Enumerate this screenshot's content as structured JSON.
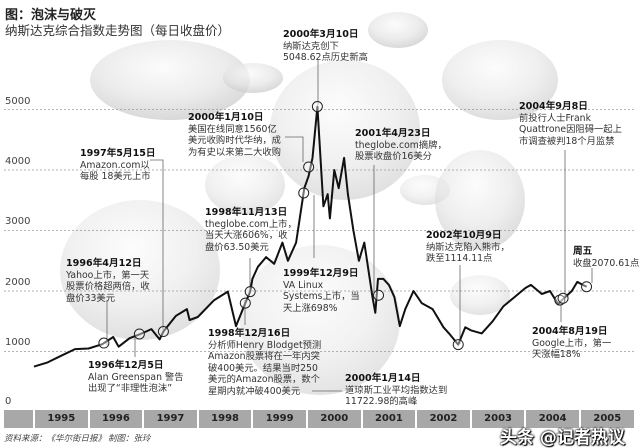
{
  "header": {
    "title": "图：泡沫与破灭",
    "subtitle": "纳斯达克综合指数走势图（每日收盘价）"
  },
  "footer": {
    "source": "资料来源：《华尔街日报》",
    "credit": "制图：张玲",
    "watermark": "头条 @记者热议"
  },
  "colors": {
    "line": "#111111",
    "grid": "#999999",
    "yearbar": "#a8a8a8"
  },
  "chart_data": {
    "type": "line",
    "title": "纳斯达克综合指数走势图（每日收盘价）",
    "ylim": [
      0,
      5000
    ],
    "yticks": [
      "5000",
      "4000",
      "3000",
      "2000",
      "1000",
      "0"
    ],
    "xticks": [
      "1995",
      "1996",
      "1997",
      "1998",
      "1999",
      "2000",
      "2001",
      "2002",
      "2003",
      "2004",
      "2005"
    ],
    "grid": true,
    "x": [
      1995.0,
      1995.25,
      1995.5,
      1995.75,
      1996.0,
      1996.25,
      1996.45,
      1996.55,
      1996.75,
      1996.95,
      1997.15,
      1997.3,
      1997.37,
      1997.6,
      1997.8,
      1997.85,
      1998.0,
      1998.3,
      1998.55,
      1998.7,
      1998.87,
      1998.96,
      1999.0,
      1999.1,
      1999.25,
      1999.4,
      1999.55,
      1999.65,
      1999.8,
      1999.95,
      2000.03,
      2000.1,
      2000.19,
      2000.3,
      2000.38,
      2000.42,
      2000.5,
      2000.58,
      2000.68,
      2000.75,
      2000.85,
      2000.95,
      2001.05,
      2001.2,
      2001.25,
      2001.3,
      2001.4,
      2001.5,
      2001.6,
      2001.7,
      2001.8,
      2001.95,
      2002.1,
      2002.3,
      2002.5,
      2002.6,
      2002.77,
      2002.9,
      2003.0,
      2003.2,
      2003.4,
      2003.6,
      2003.8,
      2004.0,
      2004.1,
      2004.3,
      2004.45,
      2004.6,
      2004.67,
      2004.85,
      2004.95,
      2005.05,
      2005.12
    ],
    "y": [
      750,
      820,
      930,
      1040,
      1050,
      1120,
      1240,
      1080,
      1220,
      1290,
      1370,
      1200,
      1330,
      1590,
      1700,
      1520,
      1570,
      1850,
      1990,
      1420,
      1800,
      1990,
      2200,
      2400,
      2560,
      2450,
      2800,
      2500,
      2800,
      3700,
      3900,
      4200,
      5048,
      3400,
      3600,
      3200,
      4000,
      3700,
      4200,
      3600,
      3000,
      2500,
      2800,
      1900,
      1640,
      2200,
      2200,
      2100,
      1900,
      1420,
      1700,
      2000,
      1800,
      1700,
      1400,
      1300,
      1114,
      1400,
      1350,
      1300,
      1500,
      1750,
      1900,
      2050,
      2100,
      1950,
      2000,
      1780,
      1850,
      2000,
      2150,
      2100,
      2070.61
    ],
    "markers": [
      {
        "date": 1996.28,
        "value": 1140
      },
      {
        "date": 1996.93,
        "value": 1290
      },
      {
        "date": 1997.37,
        "value": 1330
      },
      {
        "date": 1998.87,
        "value": 1800
      },
      {
        "date": 1998.96,
        "value": 1990
      },
      {
        "date": 1999.94,
        "value": 3620
      },
      {
        "date": 2000.03,
        "value": 4050
      },
      {
        "date": 2000.19,
        "value": 5048.62
      },
      {
        "date": 2001.31,
        "value": 1930
      },
      {
        "date": 2002.77,
        "value": 1114.11
      },
      {
        "date": 2004.63,
        "value": 1850
      },
      {
        "date": 2004.69,
        "value": 1880
      },
      {
        "date": 2005.12,
        "value": 2070.61
      }
    ]
  },
  "annotations": [
    {
      "id": "a1",
      "title": "1996年4月12日",
      "lines": [
        "Yahoo上市，第一天",
        "股票价格超两倍，收",
        "盘价33美元"
      ]
    },
    {
      "id": "a2",
      "title": "1996年12月5日",
      "lines": [
        "Alan Greenspan 警告",
        "出现了“非理性泡沫”"
      ]
    },
    {
      "id": "a3",
      "title": "1997年5月15日",
      "lines": [
        "Amazon.com以",
        "每股 18美元上市"
      ]
    },
    {
      "id": "a4",
      "title": "1998年11月13日",
      "lines": [
        "theglobe.com上市，",
        "当天大涨606%，收",
        "盘价63.50美元"
      ]
    },
    {
      "id": "a5",
      "title": "1998年12月16日",
      "lines": [
        "分析师Henry Blodget预测",
        "Amazon股票将在一年内突",
        "破400美元。结果当时250",
        "美元的Amazon股票，数个",
        "星期内就冲破400美元"
      ]
    },
    {
      "id": "a6",
      "title": "1999年12月9日",
      "lines": [
        "VA Linux",
        "Systems上市，当",
        "天上涨698%"
      ]
    },
    {
      "id": "a7",
      "title": "2000年1月10日",
      "lines": [
        "美国在线同意1560亿",
        "美元收购时代华纳，成",
        "为有史以来第二大收购"
      ]
    },
    {
      "id": "a8",
      "title": "2000年3月10日",
      "lines": [
        "纳斯达克创下",
        "5048.62点历史新高"
      ]
    },
    {
      "id": "a9",
      "title": "2000年1月14日",
      "lines": [
        "道琼斯工业平均指数达到",
        "11722.98的高峰"
      ]
    },
    {
      "id": "a10",
      "title": "2001年4月23日",
      "lines": [
        "theglobe.com摘牌，",
        "股票收盘价16美分"
      ]
    },
    {
      "id": "a11",
      "title": "2002年10月9日",
      "lines": [
        "纳斯达克陷入熊市，",
        "跌至1114.11点"
      ]
    },
    {
      "id": "a12",
      "title": "2004年9月8日",
      "lines": [
        "前投行人士Frank",
        "Quattrone因阻碍一起上",
        "市调查被判18个月监禁"
      ]
    },
    {
      "id": "a13",
      "title": "2004年8月19日",
      "lines": [
        "Google上市，第一",
        "天涨幅18%"
      ]
    },
    {
      "id": "a14",
      "title": "周五",
      "lines": [
        "收盘2070.61点"
      ]
    }
  ]
}
